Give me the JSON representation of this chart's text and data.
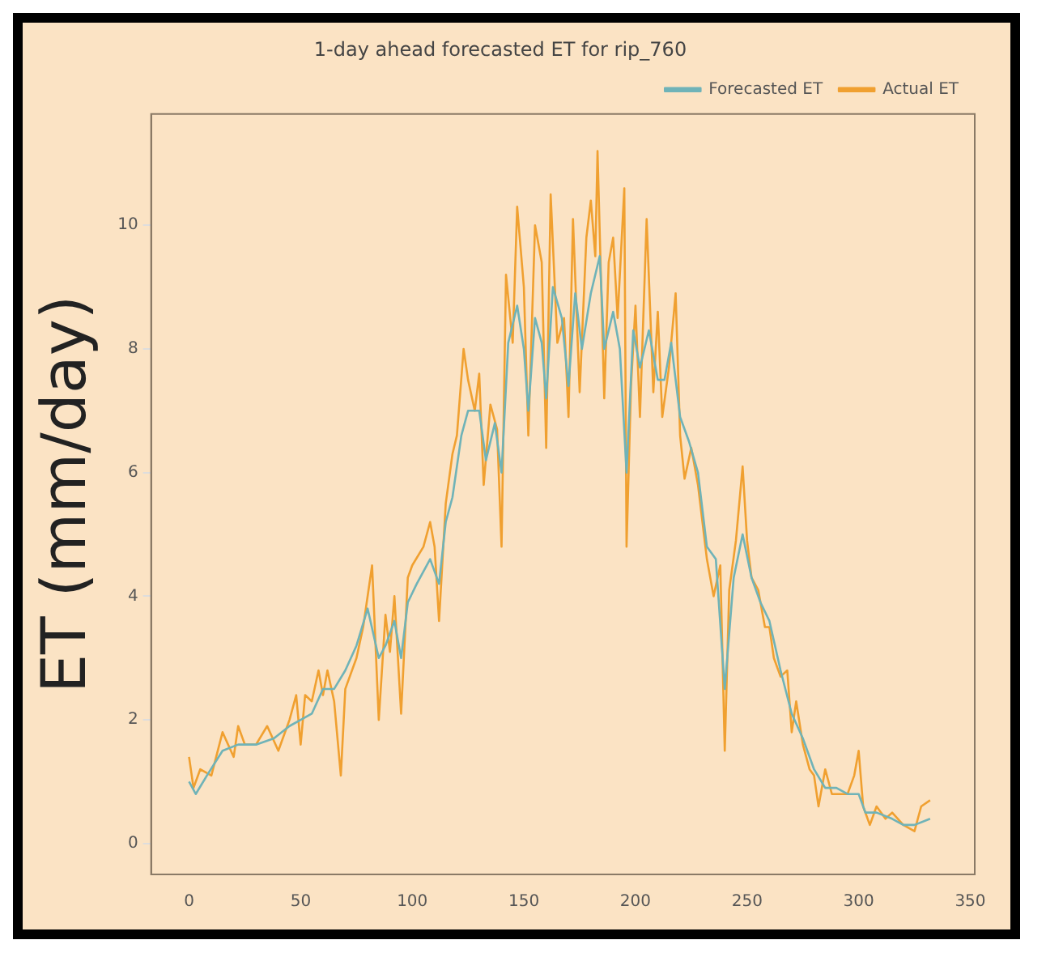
{
  "chart_data": {
    "type": "line",
    "title": "1-day ahead forecasted ET for rip_760",
    "ylabel": "ET (mm/day)",
    "xlim": [
      -17,
      352
    ],
    "xticks": [
      0,
      50,
      100,
      150,
      200,
      250,
      300,
      350
    ],
    "ylim": [
      -0.5,
      11.8
    ],
    "yticks": [
      0,
      2,
      4,
      6,
      8,
      10
    ],
    "grid": false,
    "legend": "top right",
    "marker": "none",
    "line_style": "solid",
    "series": [
      {
        "name": "Actual ET",
        "color": "#f0a030",
        "x": [
          0,
          2,
          5,
          10,
          15,
          20,
          22,
          25,
          30,
          35,
          40,
          42,
          45,
          48,
          50,
          52,
          55,
          58,
          60,
          62,
          65,
          68,
          70,
          75,
          78,
          82,
          85,
          88,
          90,
          92,
          95,
          98,
          100,
          105,
          108,
          110,
          112,
          115,
          118,
          120,
          123,
          125,
          128,
          130,
          132,
          135,
          138,
          140,
          142,
          145,
          147,
          150,
          152,
          155,
          158,
          160,
          162,
          165,
          168,
          170,
          172,
          175,
          178,
          180,
          182,
          183,
          186,
          188,
          190,
          192,
          195,
          196,
          198,
          200,
          202,
          205,
          208,
          210,
          212,
          215,
          218,
          220,
          222,
          225,
          228,
          232,
          235,
          238,
          240,
          242,
          245,
          248,
          250,
          252,
          255,
          258,
          260,
          262,
          265,
          268,
          270,
          272,
          275,
          278,
          280,
          282,
          285,
          288,
          292,
          295,
          298,
          300,
          302,
          305,
          308,
          312,
          315,
          320,
          325,
          328,
          332
        ],
        "values": [
          1.4,
          0.9,
          1.2,
          1.1,
          1.8,
          1.4,
          1.9,
          1.6,
          1.6,
          1.9,
          1.5,
          1.7,
          2.0,
          2.4,
          1.6,
          2.4,
          2.3,
          2.8,
          2.4,
          2.8,
          2.3,
          1.1,
          2.5,
          3.0,
          3.5,
          4.5,
          2.0,
          3.7,
          3.1,
          4.0,
          2.1,
          4.3,
          4.5,
          4.8,
          5.2,
          4.8,
          3.6,
          5.5,
          6.3,
          6.6,
          8.0,
          7.5,
          7.0,
          7.6,
          5.8,
          7.1,
          6.7,
          4.8,
          9.2,
          8.1,
          10.3,
          9.0,
          6.6,
          10.0,
          9.4,
          6.4,
          10.5,
          8.1,
          8.5,
          6.9,
          10.1,
          7.3,
          9.8,
          10.4,
          9.5,
          11.2,
          7.2,
          9.4,
          9.8,
          8.5,
          10.6,
          4.8,
          7.4,
          8.7,
          6.9,
          10.1,
          7.3,
          8.6,
          6.9,
          7.7,
          8.9,
          6.6,
          5.9,
          6.4,
          5.8,
          4.6,
          4.0,
          4.5,
          1.5,
          4.1,
          4.9,
          6.1,
          4.9,
          4.3,
          4.1,
          3.5,
          3.5,
          3.0,
          2.7,
          2.8,
          1.8,
          2.3,
          1.6,
          1.2,
          1.1,
          0.6,
          1.2,
          0.8,
          0.8,
          0.8,
          1.1,
          1.5,
          0.6,
          0.3,
          0.6,
          0.4,
          0.5,
          0.3,
          0.2,
          0.6,
          0.7
        ]
      },
      {
        "name": "Forecasted ET",
        "color": "#6fb3b8",
        "x": [
          0,
          3,
          8,
          15,
          22,
          30,
          38,
          45,
          50,
          55,
          60,
          65,
          70,
          75,
          80,
          85,
          88,
          92,
          95,
          98,
          102,
          108,
          112,
          115,
          118,
          122,
          125,
          130,
          133,
          137,
          140,
          143,
          147,
          150,
          152,
          155,
          158,
          160,
          163,
          167,
          170,
          173,
          176,
          180,
          184,
          186,
          190,
          193,
          196,
          199,
          202,
          206,
          210,
          213,
          216,
          220,
          224,
          228,
          232,
          236,
          240,
          244,
          248,
          252,
          256,
          260,
          265,
          270,
          275,
          280,
          285,
          290,
          295,
          300,
          303,
          308,
          315,
          320,
          325,
          332
        ],
        "values": [
          1.0,
          0.8,
          1.1,
          1.5,
          1.6,
          1.6,
          1.7,
          1.9,
          2.0,
          2.1,
          2.5,
          2.5,
          2.8,
          3.2,
          3.8,
          3.0,
          3.2,
          3.6,
          3.0,
          3.9,
          4.2,
          4.6,
          4.2,
          5.2,
          5.6,
          6.6,
          7.0,
          7.0,
          6.2,
          6.8,
          6.0,
          8.1,
          8.7,
          8.0,
          7.0,
          8.5,
          8.1,
          7.2,
          9.0,
          8.5,
          7.4,
          8.9,
          8.0,
          8.9,
          9.5,
          8.0,
          8.6,
          8.0,
          6.0,
          8.3,
          7.7,
          8.3,
          7.5,
          7.5,
          8.1,
          6.9,
          6.5,
          6.0,
          4.8,
          4.6,
          2.5,
          4.3,
          5.0,
          4.3,
          3.9,
          3.6,
          2.8,
          2.1,
          1.7,
          1.2,
          0.9,
          0.9,
          0.8,
          0.8,
          0.5,
          0.5,
          0.4,
          0.3,
          0.3,
          0.4
        ]
      }
    ]
  }
}
